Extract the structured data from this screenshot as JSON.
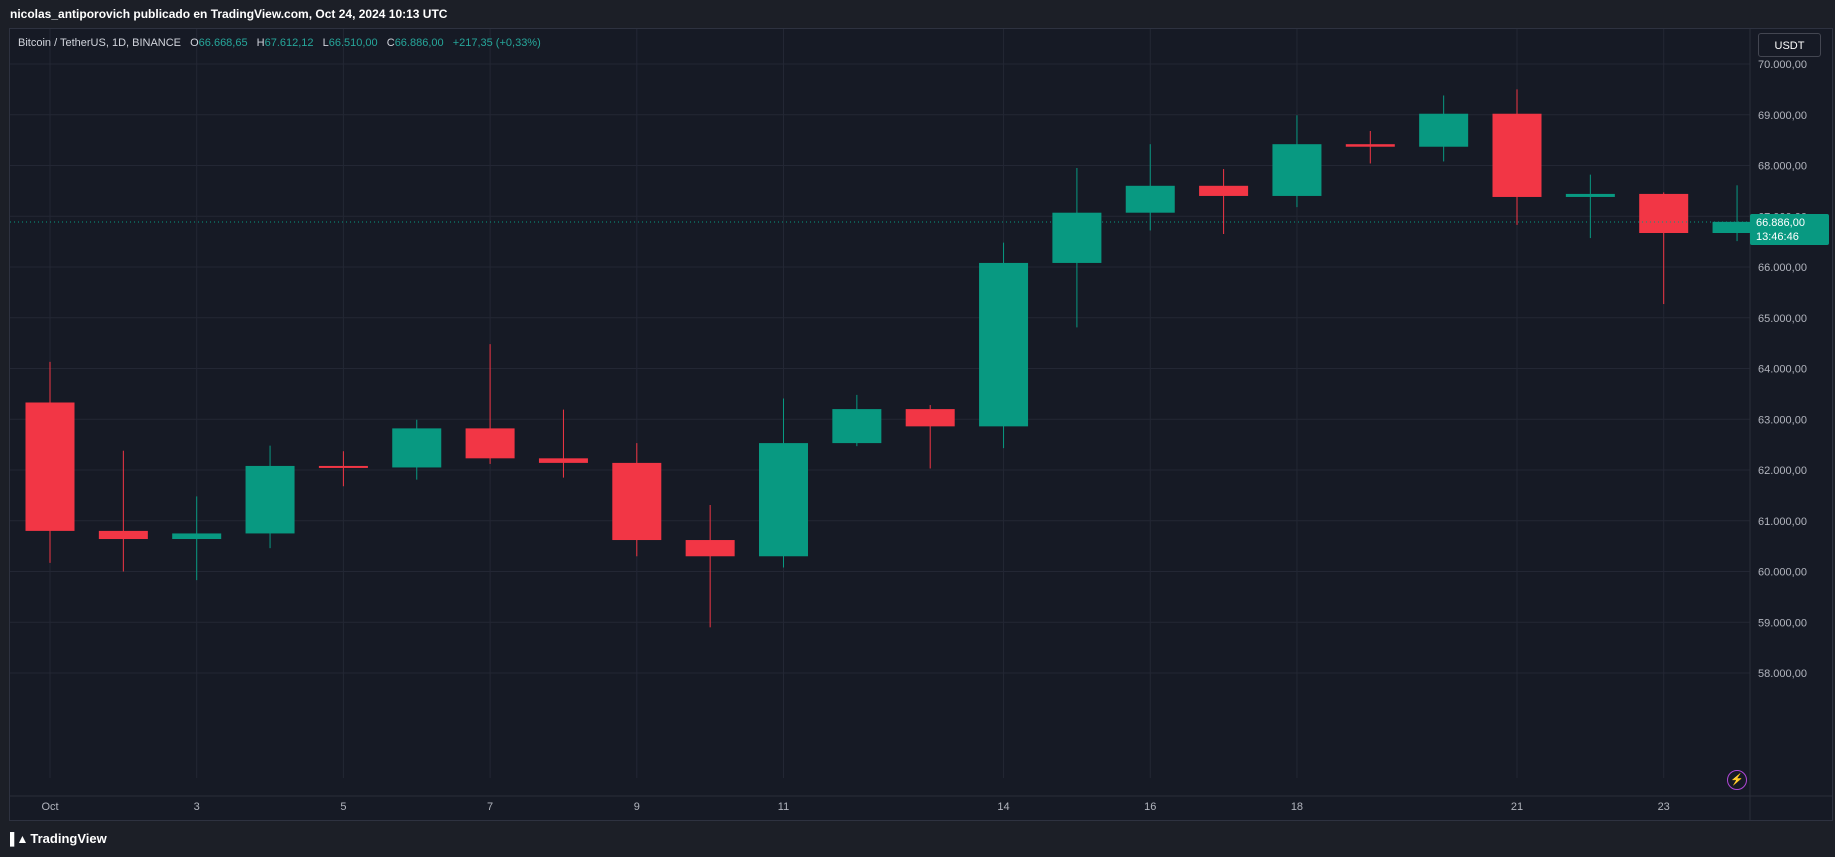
{
  "header": {
    "published_text": "nicolas_antiporovich publicado en TradingView.com, Oct 24, 2024 10:13 UTC"
  },
  "legend": {
    "symbol": "Bitcoin / TetherUS, 1D, BINANCE",
    "o_label": "O",
    "o_value": "66.668,65",
    "h_label": "H",
    "h_value": "67.612,12",
    "l_label": "L",
    "l_value": "66.510,00",
    "c_label": "C",
    "c_value": "66.886,00",
    "change": "+217,35 (+0,33%)"
  },
  "currency": "USDT",
  "price_label": {
    "value": "66.886,00",
    "countdown": "13:46:46"
  },
  "footer": {
    "brand": "TradingView",
    "logo_icon": "tradingview-logo-icon"
  },
  "colors": {
    "up": "#089981",
    "down": "#f23645",
    "background": "#161a25",
    "grid": "#232734",
    "axis_text": "#b2b5be"
  },
  "chart_data": {
    "type": "candlestick",
    "symbol": "BTCUSDT",
    "interval": "1D",
    "ylim": [
      57800,
      70500
    ],
    "y_ticks": [
      {
        "value": 70000,
        "label": "70.000,00"
      },
      {
        "value": 69000,
        "label": "69.000,00"
      },
      {
        "value": 68000,
        "label": "68.000,00"
      },
      {
        "value": 67000,
        "label": "67.000,00"
      },
      {
        "value": 66000,
        "label": "66.000,00"
      },
      {
        "value": 65000,
        "label": "65.000,00"
      },
      {
        "value": 64000,
        "label": "64.000,00"
      },
      {
        "value": 63000,
        "label": "63.000,00"
      },
      {
        "value": 62000,
        "label": "62.000,00"
      },
      {
        "value": 61000,
        "label": "61.000,00"
      },
      {
        "value": 60000,
        "label": "60.000,00"
      },
      {
        "value": 59000,
        "label": "59.000,00"
      },
      {
        "value": 58000,
        "label": "58.000,00"
      }
    ],
    "x_ticks": [
      {
        "index": 0,
        "label": "Oct"
      },
      {
        "index": 2,
        "label": "3"
      },
      {
        "index": 4,
        "label": "5"
      },
      {
        "index": 6,
        "label": "7"
      },
      {
        "index": 8,
        "label": "9"
      },
      {
        "index": 10,
        "label": "11"
      },
      {
        "index": 13,
        "label": "14"
      },
      {
        "index": 15,
        "label": "16"
      },
      {
        "index": 17,
        "label": "18"
      },
      {
        "index": 20,
        "label": "21"
      },
      {
        "index": 22,
        "label": "23"
      }
    ],
    "candles": [
      {
        "date": "Oct 1",
        "o": 63330,
        "h": 64130,
        "l": 60170,
        "c": 60800
      },
      {
        "date": "Oct 2",
        "o": 60800,
        "h": 62380,
        "l": 60000,
        "c": 60640
      },
      {
        "date": "Oct 3",
        "o": 60640,
        "h": 61480,
        "l": 59830,
        "c": 60750
      },
      {
        "date": "Oct 4",
        "o": 60750,
        "h": 62480,
        "l": 60460,
        "c": 62080
      },
      {
        "date": "Oct 5",
        "o": 62080,
        "h": 62370,
        "l": 61680,
        "c": 62050
      },
      {
        "date": "Oct 6",
        "o": 62050,
        "h": 62990,
        "l": 61810,
        "c": 62820
      },
      {
        "date": "Oct 7",
        "o": 62820,
        "h": 64480,
        "l": 62120,
        "c": 62230
      },
      {
        "date": "Oct 8",
        "o": 62230,
        "h": 63190,
        "l": 61850,
        "c": 62140
      },
      {
        "date": "Oct 9",
        "o": 62140,
        "h": 62530,
        "l": 60300,
        "c": 60620
      },
      {
        "date": "Oct 10",
        "o": 60620,
        "h": 61310,
        "l": 58900,
        "c": 60300
      },
      {
        "date": "Oct 11",
        "o": 60300,
        "h": 63410,
        "l": 60080,
        "c": 62530
      },
      {
        "date": "Oct 12",
        "o": 62530,
        "h": 63480,
        "l": 62470,
        "c": 63200
      },
      {
        "date": "Oct 13",
        "o": 63200,
        "h": 63280,
        "l": 62030,
        "c": 62860
      },
      {
        "date": "Oct 14",
        "o": 62860,
        "h": 66480,
        "l": 62430,
        "c": 66080
      },
      {
        "date": "Oct 15",
        "o": 66080,
        "h": 67950,
        "l": 64810,
        "c": 67070
      },
      {
        "date": "Oct 16",
        "o": 67070,
        "h": 68420,
        "l": 66720,
        "c": 67600
      },
      {
        "date": "Oct 17",
        "o": 67600,
        "h": 67930,
        "l": 66650,
        "c": 67400
      },
      {
        "date": "Oct 18",
        "o": 67400,
        "h": 68990,
        "l": 67180,
        "c": 68420
      },
      {
        "date": "Oct 19",
        "o": 68420,
        "h": 68680,
        "l": 68040,
        "c": 68370
      },
      {
        "date": "Oct 20",
        "o": 68370,
        "h": 69380,
        "l": 68080,
        "c": 69020
      },
      {
        "date": "Oct 21",
        "o": 69020,
        "h": 69500,
        "l": 66830,
        "c": 67380
      },
      {
        "date": "Oct 22",
        "o": 67380,
        "h": 67820,
        "l": 66570,
        "c": 67440
      },
      {
        "date": "Oct 23",
        "o": 67440,
        "h": 67470,
        "l": 65270,
        "c": 66670
      },
      {
        "date": "Oct 24",
        "o": 66670,
        "h": 67610,
        "l": 66510,
        "c": 66890
      }
    ],
    "last_price": 66886
  }
}
